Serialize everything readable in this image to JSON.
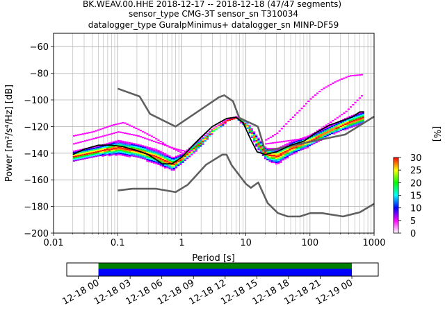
{
  "chart_data": {
    "type": "ppsd",
    "title_lines": [
      "BK.WEAV.00.HHE   2018-12-17 -- 2018-12-18  (47/47 segments)",
      "sensor_type CMG-3T sensor_sn T310034",
      "datalogger_type GuralpMinimus+ datalogger_sn MINP-DF59"
    ],
    "xlabel": "Period [s]",
    "ylabel": "Power [m²/s⁴/Hz] [dB]",
    "x_scale": "log",
    "xlim": [
      0.01,
      1000
    ],
    "ylim": [
      -200,
      -50
    ],
    "x_ticks": [
      {
        "value": 0.01,
        "label": "0.01"
      },
      {
        "value": 0.1,
        "label": "0.1"
      },
      {
        "value": 1,
        "label": "1"
      },
      {
        "value": 10,
        "label": "10"
      },
      {
        "value": 100,
        "label": "100"
      },
      {
        "value": 1000,
        "label": "1000"
      }
    ],
    "y_ticks": [
      {
        "value": -60,
        "label": "−60"
      },
      {
        "value": -80,
        "label": "−80"
      },
      {
        "value": -100,
        "label": "−100"
      },
      {
        "value": -120,
        "label": "−120"
      },
      {
        "value": -140,
        "label": "−140"
      },
      {
        "value": -160,
        "label": "−160"
      },
      {
        "value": -180,
        "label": "−180"
      },
      {
        "value": -200,
        "label": "−200"
      }
    ],
    "grid": true,
    "colorbar": {
      "label": "[%]",
      "range": [
        0,
        30
      ],
      "ticks": [
        {
          "value": 0,
          "label": "0"
        },
        {
          "value": 5,
          "label": "5"
        },
        {
          "value": 10,
          "label": "10"
        },
        {
          "value": 15,
          "label": "15"
        },
        {
          "value": 20,
          "label": "20"
        },
        {
          "value": 25,
          "label": "25"
        },
        {
          "value": 30,
          "label": "30"
        }
      ],
      "colors": [
        "#ffffff",
        "#ff00ff",
        "#0000ff",
        "#00ffff",
        "#00ff00",
        "#ffff00",
        "#ff0000"
      ]
    },
    "mean_curve": {
      "color": "#000000",
      "points": [
        [
          0.02,
          -141
        ],
        [
          0.03,
          -137
        ],
        [
          0.05,
          -134
        ],
        [
          0.08,
          -134
        ],
        [
          0.12,
          -135
        ],
        [
          0.2,
          -138
        ],
        [
          0.3,
          -141
        ],
        [
          0.5,
          -148
        ],
        [
          0.7,
          -148
        ],
        [
          1,
          -143
        ],
        [
          1.5,
          -134
        ],
        [
          2,
          -128
        ],
        [
          3,
          -120
        ],
        [
          5,
          -114
        ],
        [
          7,
          -113
        ],
        [
          9,
          -117
        ],
        [
          12,
          -130
        ],
        [
          15,
          -139
        ],
        [
          20,
          -141
        ],
        [
          30,
          -139
        ],
        [
          50,
          -134
        ],
        [
          80,
          -131
        ],
        [
          120,
          -125
        ],
        [
          200,
          -119
        ],
        [
          300,
          -116
        ],
        [
          450,
          -113
        ],
        [
          600,
          -109
        ],
        [
          700,
          -109
        ]
      ]
    },
    "noise_model_high": {
      "color": "#606060",
      "points": [
        [
          0.1,
          -91.5
        ],
        [
          0.22,
          -97.4
        ],
        [
          0.32,
          -110.5
        ],
        [
          0.8,
          -120
        ],
        [
          3.8,
          -98
        ],
        [
          4.6,
          -96.5
        ],
        [
          6.3,
          -101
        ],
        [
          7.9,
          -113.5
        ],
        [
          15.4,
          -120
        ],
        [
          20,
          -138.5
        ],
        [
          354.8,
          -126
        ],
        [
          1000,
          -112.5
        ]
      ]
    },
    "noise_model_low": {
      "color": "#606060",
      "points": [
        [
          0.1,
          -168
        ],
        [
          0.17,
          -166.7
        ],
        [
          0.4,
          -166.7
        ],
        [
          0.8,
          -169.2
        ],
        [
          1.24,
          -163.7
        ],
        [
          2.4,
          -148.6
        ],
        [
          4.3,
          -141.1
        ],
        [
          5,
          -141.1
        ],
        [
          6,
          -149
        ],
        [
          10,
          -163
        ],
        [
          12,
          -166
        ],
        [
          15.6,
          -162
        ],
        [
          21.9,
          -177.5
        ],
        [
          31.6,
          -185
        ],
        [
          45,
          -187.5
        ],
        [
          70,
          -187.5
        ],
        [
          101,
          -185
        ],
        [
          154,
          -185
        ],
        [
          328,
          -187.5
        ],
        [
          600,
          -184.4
        ],
        [
          1000,
          -178
        ]
      ]
    },
    "density_bands": [
      {
        "x": [
          0.02,
          0.05,
          0.1,
          0.2,
          0.4,
          0.7,
          1,
          2,
          3,
          5,
          7,
          10,
          15,
          20,
          30,
          50,
          100,
          200,
          400,
          700
        ],
        "upper": [
          -138,
          -134,
          -130,
          -133,
          -137,
          -143,
          -140,
          -128,
          -121,
          -114,
          -112,
          -116,
          -128,
          -136,
          -136,
          -131,
          -126,
          -119,
          -112,
          -108
        ],
        "lower": [
          -146,
          -142,
          -141,
          -143,
          -148,
          -153,
          -147,
          -134,
          -124,
          -116,
          -114,
          -121,
          -137,
          -145,
          -148,
          -141,
          -134,
          -126,
          -121,
          -117
        ]
      }
    ],
    "outlier_traces": [
      {
        "x": [
          0.02,
          0.04,
          0.08,
          0.12,
          0.2,
          0.35,
          0.6,
          1,
          1.4
        ],
        "y": [
          -127,
          -124,
          -119,
          -117,
          -122,
          -128,
          -135,
          -140,
          -138
        ]
      },
      {
        "x": [
          0.02,
          0.05,
          0.1,
          0.2,
          0.4,
          0.8,
          1.2
        ],
        "y": [
          -133,
          -128,
          -124,
          -127,
          -132,
          -137,
          -139
        ]
      },
      {
        "x": [
          20,
          30,
          45,
          70,
          100,
          150,
          250,
          400,
          650
        ],
        "y": [
          -130,
          -125,
          -116,
          -107,
          -99,
          -92,
          -86,
          -82,
          -81
        ]
      },
      {
        "x": [
          20,
          40,
          80,
          120,
          200,
          350,
          650
        ],
        "y": [
          -133,
          -131,
          -129,
          -124,
          -117,
          -109,
          -96
        ]
      }
    ],
    "time_axis": {
      "tick_labels": [
        "12-18 00",
        "12-18 03",
        "12-18 06",
        "12-18 09",
        "12-18 12",
        "12-18 15",
        "12-18 18",
        "12-18 21",
        "12-19 00"
      ],
      "data_start_hour": 0,
      "data_end_hour": 24,
      "axis_hours": [
        -3,
        26.5
      ],
      "band_colors": [
        "#008000",
        "#0000ff"
      ]
    }
  }
}
